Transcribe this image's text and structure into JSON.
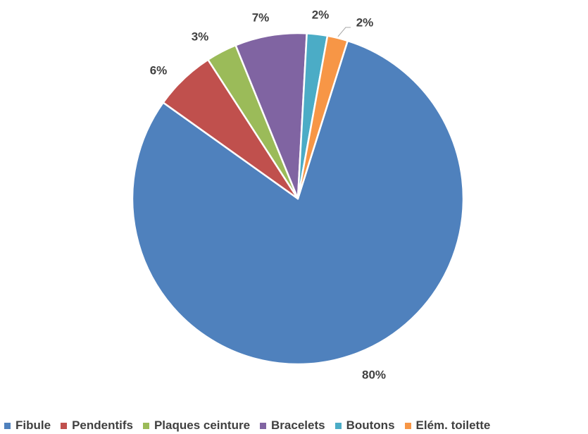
{
  "chart_data": {
    "type": "pie",
    "title": "",
    "slices": [
      {
        "label": "Fibule",
        "value": 80,
        "display": "80%",
        "color": "#4F81BD"
      },
      {
        "label": "Pendentifs",
        "value": 6,
        "display": "6%",
        "color": "#C0504D"
      },
      {
        "label": "Plaques ceinture",
        "value": 3,
        "display": "3%",
        "color": "#9BBB59"
      },
      {
        "label": "Bracelets",
        "value": 7,
        "display": "7%",
        "color": "#8064A2"
      },
      {
        "label": "Boutons",
        "value": 2,
        "display": "2%",
        "color": "#4BACC6"
      },
      {
        "label": "Elém. toilette",
        "value": 2,
        "display": "2%",
        "color": "#F79646"
      }
    ],
    "legend_position": "bottom",
    "data_labels": "outside, percentage"
  }
}
